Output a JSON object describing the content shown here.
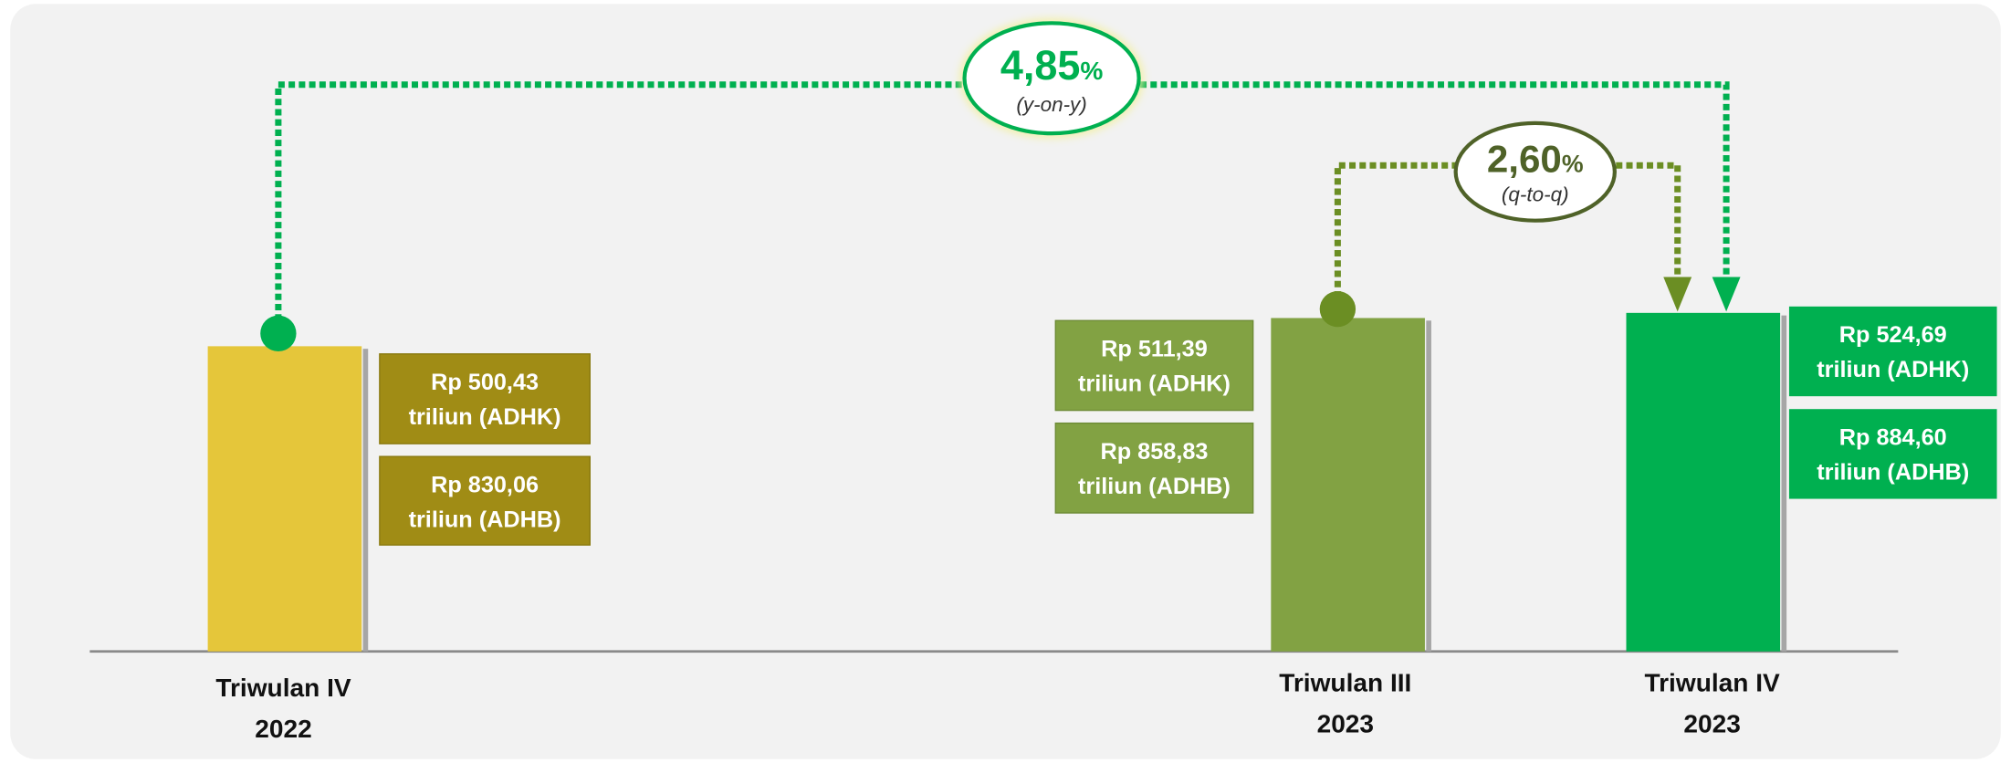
{
  "periods": [
    {
      "label": [
        "Triwulan IV",
        "2022"
      ],
      "boxes": [
        {
          "amount": "Rp 500,43",
          "unit": "triliun (ADHK)"
        },
        {
          "amount": "Rp 830,06",
          "unit": "triliun (ADHB)"
        }
      ]
    },
    {
      "label": [
        "Triwulan III",
        "2023"
      ],
      "boxes": [
        {
          "amount": "Rp 511,39",
          "unit": "triliun (ADHK)"
        },
        {
          "amount": "Rp 858,83",
          "unit": "triliun (ADHB)"
        }
      ]
    },
    {
      "label": [
        "Triwulan IV",
        "2023"
      ],
      "boxes": [
        {
          "amount": "Rp 524,69",
          "unit": "triliun (ADHK)"
        },
        {
          "amount": "Rp 884,60",
          "unit": "triliun (ADHB)"
        }
      ]
    }
  ],
  "growth": [
    {
      "value": "4,85",
      "unit": "%",
      "basis": "(y-on-y)"
    },
    {
      "value": "2,60",
      "unit": "%",
      "basis": "(q-to-q)"
    }
  ]
}
